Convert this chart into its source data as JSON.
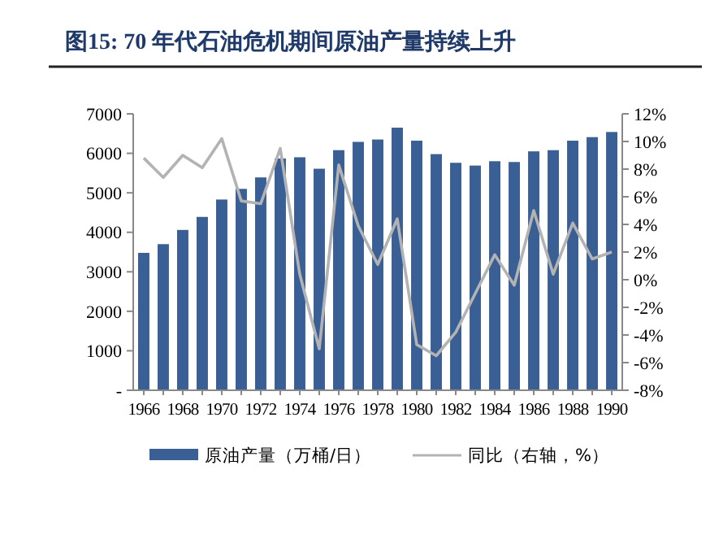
{
  "chart_data": {
    "type": "bar",
    "title": "图15:  70 年代石油危机期间原油产量持续上升",
    "categories": [
      "1966",
      null,
      "1968",
      null,
      "1970",
      null,
      "1972",
      null,
      "1974",
      null,
      "1976",
      null,
      "1978",
      null,
      "1980",
      null,
      "1982",
      null,
      "1984",
      null,
      "1986",
      null,
      "1988",
      null,
      "1990"
    ],
    "series": [
      {
        "name": "原油产量（万桶/日）",
        "color": "#3a5f94",
        "values": [
          3480,
          3700,
          4060,
          4390,
          4830,
          5100,
          5390,
          5870,
          5900,
          5610,
          6080,
          6290,
          6350,
          6650,
          6320,
          5980,
          5760,
          5690,
          5800,
          5780,
          6050,
          6080,
          6320,
          6410,
          6540
        ]
      },
      {
        "name": "同比（右轴，%）",
        "type": "line",
        "axis": "y2",
        "color": "#b3b3b3",
        "values": [
          8.8,
          7.4,
          9.0,
          8.1,
          10.2,
          5.7,
          5.5,
          9.5,
          0.4,
          -5.0,
          8.3,
          3.9,
          1.1,
          4.4,
          -4.7,
          -5.5,
          -3.8,
          -1.0,
          1.8,
          -0.4,
          5.0,
          0.4,
          4.1,
          1.5,
          2.0
        ]
      }
    ],
    "ylim": [
      0,
      7000
    ],
    "yticks": [
      {
        "value": 0,
        "label": "-"
      },
      1000,
      2000,
      3000,
      4000,
      5000,
      6000,
      7000
    ],
    "y2lim": [
      -8,
      12
    ],
    "y2ticks": [
      {
        "value": -8,
        "label": "-8%"
      },
      {
        "value": -6,
        "label": "-6%"
      },
      {
        "value": -4,
        "label": "-4%"
      },
      {
        "value": -2,
        "label": "-2%"
      },
      {
        "value": 0,
        "label": "0%"
      },
      {
        "value": 2,
        "label": "2%"
      },
      {
        "value": 4,
        "label": "4%"
      },
      {
        "value": 6,
        "label": "6%"
      },
      {
        "value": 8,
        "label": "8%"
      },
      {
        "value": 10,
        "label": "10%"
      },
      {
        "value": 12,
        "label": "12%"
      }
    ],
    "legend": "bottom",
    "grid": false
  }
}
